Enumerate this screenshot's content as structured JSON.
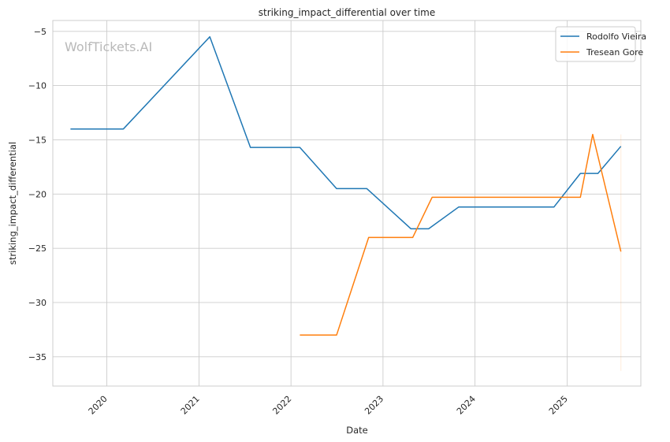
{
  "chart_data": {
    "type": "line",
    "title": "striking_impact_differential over time",
    "xlabel": "Date",
    "ylabel": "striking_impact_differential",
    "watermark": "WolfTickets.AI",
    "x_ticks": [
      "2020",
      "2021",
      "2022",
      "2023",
      "2024",
      "2025"
    ],
    "y_ticks": [
      -5,
      -10,
      -15,
      -20,
      -25,
      -30,
      -35
    ],
    "xlim": [
      "2019-06-01",
      "2025-10-20"
    ],
    "ylim": [
      -37.7,
      -4.0
    ],
    "grid": true,
    "legend_position": "top-right",
    "series": [
      {
        "name": "Rodolfo Vieira",
        "color": "#1f77b4",
        "points": [
          [
            "2019-08-10",
            -14.0
          ],
          [
            "2020-03-07",
            -14.0
          ],
          [
            "2021-02-13",
            -5.5
          ],
          [
            "2021-07-24",
            -15.7
          ],
          [
            "2022-02-05",
            -15.7
          ],
          [
            "2022-07-01",
            -19.5
          ],
          [
            "2022-10-29",
            -19.5
          ],
          [
            "2023-04-22",
            -23.2
          ],
          [
            "2023-07-01",
            -23.2
          ],
          [
            "2023-10-28",
            -21.2
          ],
          [
            "2024-11-09",
            -21.2
          ],
          [
            "2025-02-22",
            -18.1
          ],
          [
            "2025-05-03",
            -18.1
          ],
          [
            "2025-08-02",
            -15.6
          ]
        ]
      },
      {
        "name": "Tresean Gore",
        "color": "#ff7f0e",
        "points": [
          [
            "2022-02-05",
            -33.0
          ],
          [
            "2022-07-01",
            -33.0
          ],
          [
            "2022-11-05",
            -24.0
          ],
          [
            "2023-04-29",
            -24.0
          ],
          [
            "2023-07-15",
            -20.3
          ],
          [
            "2025-02-22",
            -20.3
          ],
          [
            "2025-04-12",
            -14.5
          ],
          [
            "2025-08-02",
            -25.3
          ]
        ]
      }
    ]
  }
}
